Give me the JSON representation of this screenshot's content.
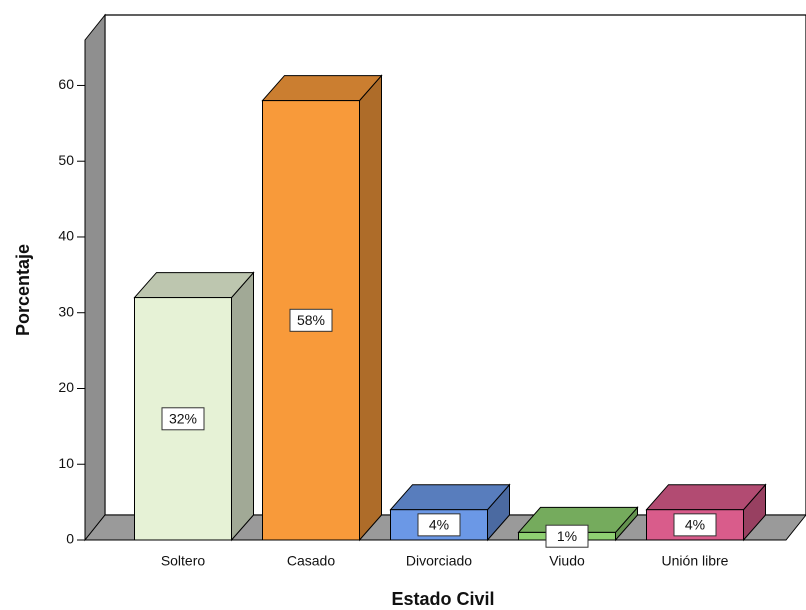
{
  "chart_data": {
    "type": "bar3d",
    "x_label": "Estado Civil",
    "y_label": "Porcentaje",
    "categories": [
      "Soltero",
      "Casado",
      "Divorciado",
      "Viudo",
      "Unión libre"
    ],
    "values": [
      32,
      58,
      4,
      1,
      4
    ],
    "value_labels": [
      "32%",
      "58%",
      "4%",
      "1%",
      "4%"
    ],
    "colors": [
      "#e6f2d6",
      "#f89a3a",
      "#6b98e6",
      "#8fd072",
      "#d95c8b"
    ],
    "ylim": [
      0,
      66
    ],
    "yticks": [
      0,
      10,
      20,
      30,
      40,
      50,
      60
    ]
  }
}
